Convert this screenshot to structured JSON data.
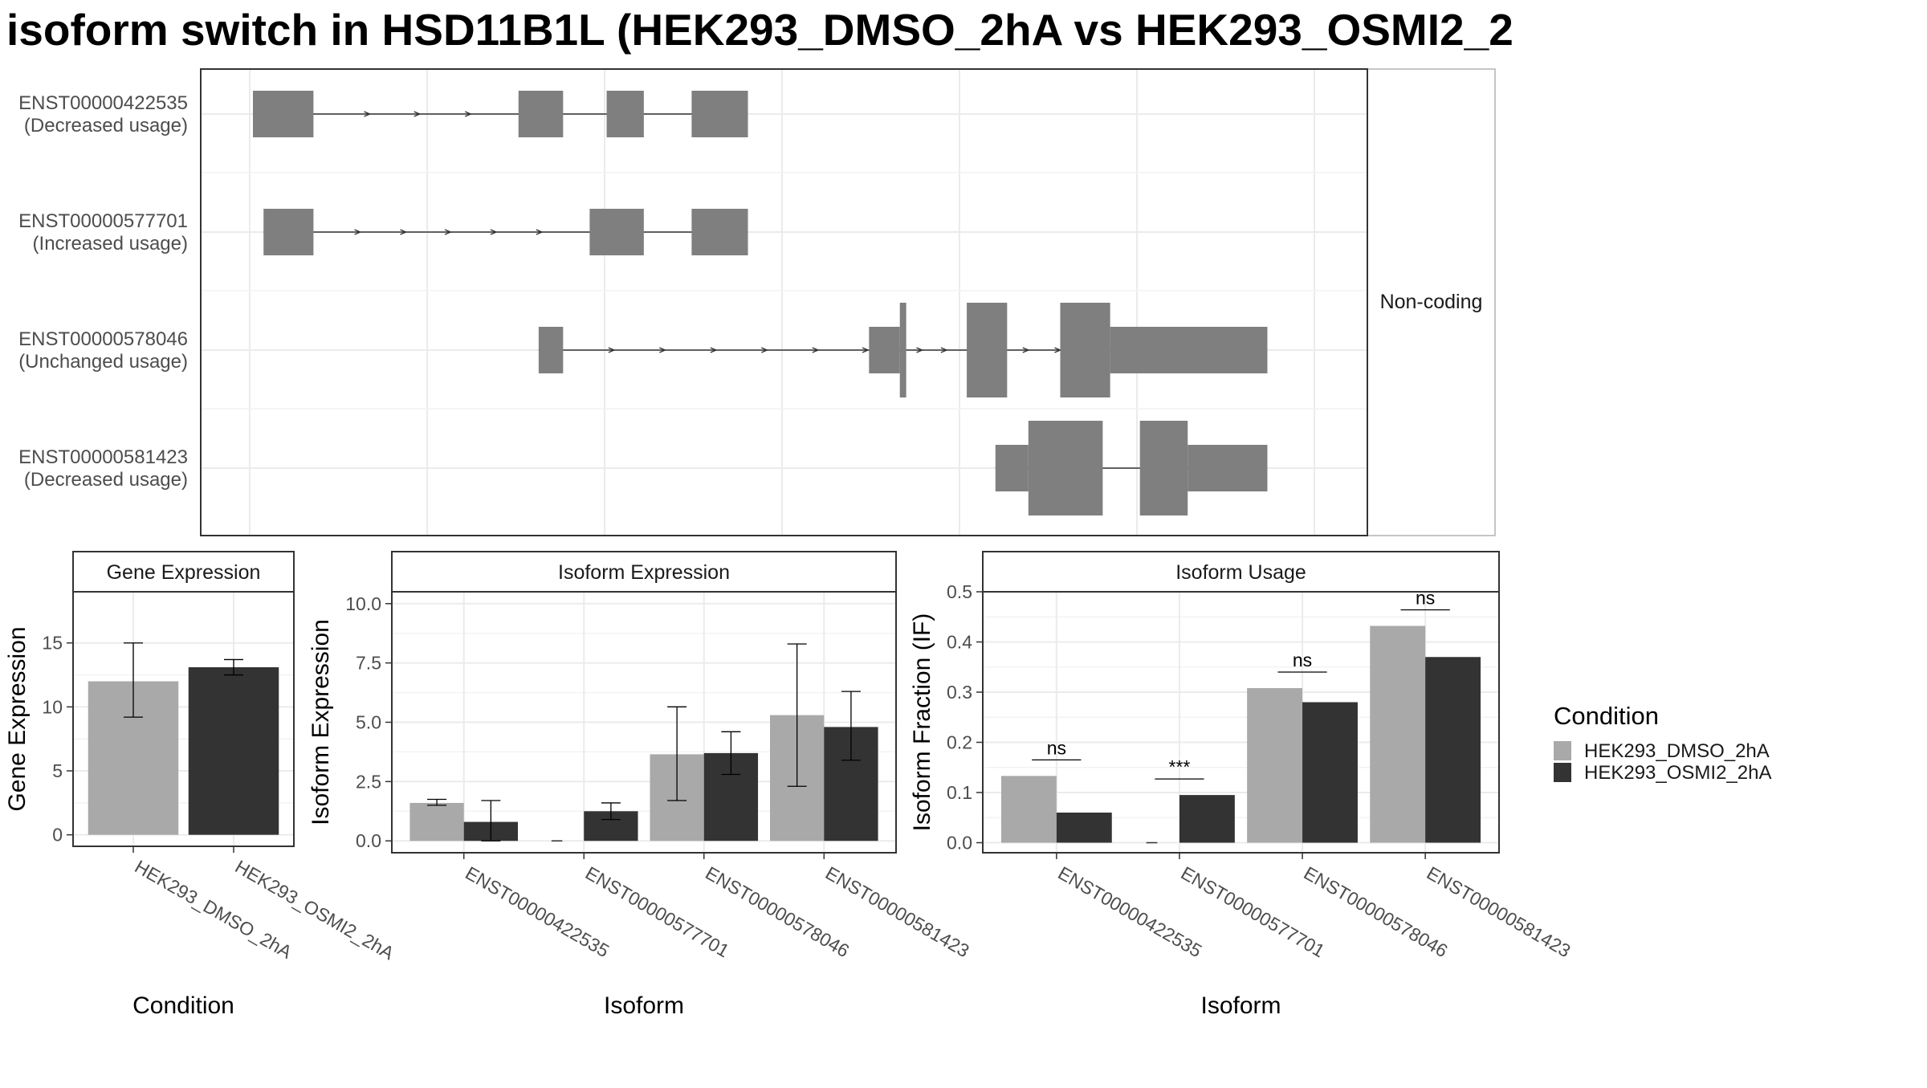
{
  "title": "isoform switch in HSD11B1L (HEK293_DMSO_2hA vs HEK293_OSMI2_2",
  "colors": {
    "dmso": "#a9a9a9",
    "osmi": "#333333",
    "exon": "#7f7f7f",
    "grid": "#ebebeb",
    "strip_bg": "#ffffff",
    "border": "#333333"
  },
  "chart_data": [
    {
      "type": "gene_model",
      "strip_label": "Non-coding",
      "transcripts": [
        {
          "id": "ENST00000422535",
          "usage": "(Decreased usage)",
          "segments": [
            {
              "start": 0.0,
              "end": 0.057,
              "h": "full"
            },
            {
              "start": 0.25,
              "end": 0.292,
              "h": "full"
            },
            {
              "start": 0.333,
              "end": 0.368,
              "h": "full"
            },
            {
              "start": 0.413,
              "end": 0.466,
              "h": "full"
            }
          ],
          "arrows": [
            0.11,
            0.157,
            0.205
          ]
        },
        {
          "id": "ENST00000577701",
          "usage": "(Increased usage)",
          "segments": [
            {
              "start": 0.01,
              "end": 0.057,
              "h": "full"
            },
            {
              "start": 0.317,
              "end": 0.368,
              "h": "full"
            },
            {
              "start": 0.413,
              "end": 0.466,
              "h": "full"
            }
          ],
          "arrows": [
            0.101,
            0.144,
            0.186,
            0.229,
            0.272
          ]
        },
        {
          "id": "ENST00000578046",
          "usage": "(Unchanged usage)",
          "segments": [
            {
              "start": 0.269,
              "end": 0.292,
              "h": "full"
            },
            {
              "start": 0.58,
              "end": 0.609,
              "h": "full"
            },
            {
              "start": 0.609,
              "end": 0.615,
              "h": "tall"
            },
            {
              "start": 0.672,
              "end": 0.71,
              "h": "tall"
            },
            {
              "start": 0.76,
              "end": 0.807,
              "h": "tall"
            },
            {
              "start": 0.807,
              "end": 0.955,
              "h": "full"
            }
          ],
          "arrows": [
            0.34,
            0.388,
            0.436,
            0.484,
            0.532,
            0.579,
            0.63,
            0.653,
            0.73,
            0.76
          ]
        },
        {
          "id": "ENST00000581423",
          "usage": "(Decreased usage)",
          "segments": [
            {
              "start": 0.699,
              "end": 0.73,
              "h": "full"
            },
            {
              "start": 0.73,
              "end": 0.8,
              "h": "tall"
            },
            {
              "start": 0.835,
              "end": 0.88,
              "h": "tall"
            },
            {
              "start": 0.88,
              "end": 0.955,
              "h": "full"
            }
          ],
          "arrows": []
        }
      ]
    },
    {
      "type": "bar",
      "strip_title": "Gene Expression",
      "ylabel": "Gene Expression",
      "xlabel": "Condition",
      "ylim": [
        -0.9,
        19.0
      ],
      "yticks": [
        0,
        5,
        10,
        15
      ],
      "categories": [
        "HEK293_DMSO_2hA",
        "HEK293_OSMI2_2hA"
      ],
      "values": [
        12.0,
        13.1
      ],
      "error_low": [
        9.2,
        12.5
      ],
      "error_high": [
        15.0,
        13.7
      ]
    },
    {
      "type": "bar",
      "strip_title": "Isoform Expression",
      "ylabel": "Isoform Expression",
      "xlabel": "Isoform",
      "ylim": [
        -0.5,
        10.5
      ],
      "yticks": [
        "0.0",
        "2.5",
        "5.0",
        "7.5",
        "10.0"
      ],
      "categories": [
        "ENST00000422535",
        "ENST00000577701",
        "ENST00000578046",
        "ENST00000581423"
      ],
      "series": [
        {
          "name": "HEK293_DMSO_2hA",
          "values": [
            1.6,
            0.0,
            3.65,
            5.3
          ],
          "error_low": [
            1.5,
            0.0,
            1.7,
            2.3
          ],
          "error_high": [
            1.75,
            0.0,
            5.65,
            8.3
          ]
        },
        {
          "name": "HEK293_OSMI2_2hA",
          "values": [
            0.8,
            1.25,
            3.7,
            4.8
          ],
          "error_low": [
            0.0,
            0.9,
            2.8,
            3.4
          ],
          "error_high": [
            1.7,
            1.6,
            4.6,
            6.3
          ]
        }
      ]
    },
    {
      "type": "bar",
      "strip_title": "Isoform Usage",
      "ylabel": "Isoform Fraction (IF)",
      "xlabel": "Isoform",
      "ylim": [
        -0.02,
        0.5
      ],
      "yticks": [
        "0.0",
        "0.1",
        "0.2",
        "0.3",
        "0.4",
        "0.5"
      ],
      "categories": [
        "ENST00000422535",
        "ENST00000577701",
        "ENST00000578046",
        "ENST00000581423"
      ],
      "series": [
        {
          "name": "HEK293_DMSO_2hA",
          "values": [
            0.133,
            0.0,
            0.308,
            0.432
          ]
        },
        {
          "name": "HEK293_OSMI2_2hA",
          "values": [
            0.06,
            0.095,
            0.28,
            0.37
          ]
        }
      ],
      "significance": [
        "ns",
        "***",
        "ns",
        "ns"
      ]
    }
  ],
  "legend": {
    "title": "Condition",
    "items": [
      "HEK293_DMSO_2hA",
      "HEK293_OSMI2_2hA"
    ]
  }
}
